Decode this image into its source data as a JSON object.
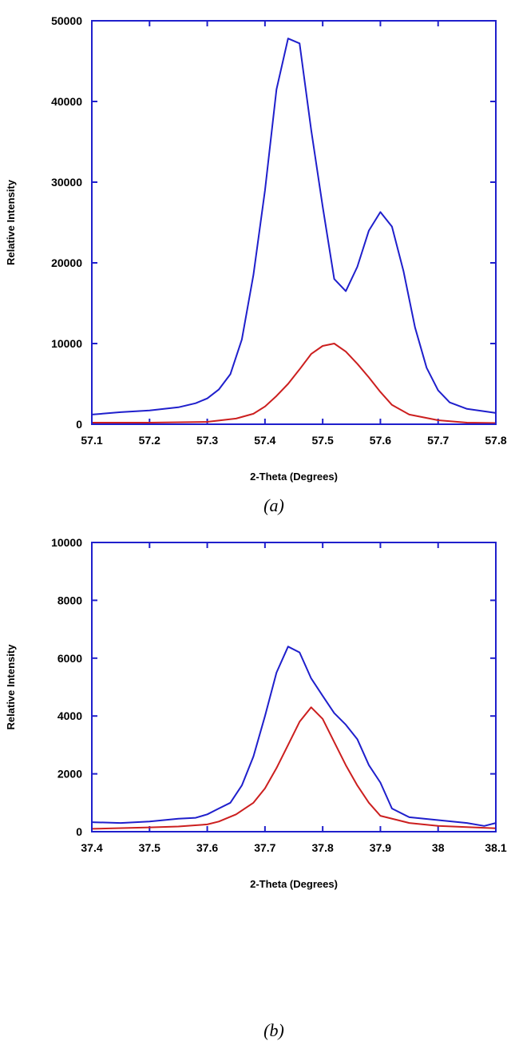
{
  "chart_data": [
    {
      "type": "line",
      "panel": "a",
      "caption": "(a)",
      "title": "",
      "xlabel": "2-Theta (Degrees)",
      "ylabel": "Relative Intensity",
      "xlim": [
        57.1,
        57.8
      ],
      "ylim": [
        0,
        50000
      ],
      "xticks": [
        57.1,
        57.2,
        57.3,
        57.4,
        57.5,
        57.6,
        57.7,
        57.8
      ],
      "xtick_labels": [
        "57.1",
        "57.2",
        "57.3",
        "57.4",
        "57.5",
        "57.6",
        "57.7",
        "57.8"
      ],
      "yticks": [
        0,
        10000,
        20000,
        30000,
        40000,
        50000
      ],
      "ytick_labels": [
        "0",
        "10000",
        "20000",
        "30000",
        "40000",
        "50000"
      ],
      "grid": false,
      "series": [
        {
          "color": "#1f1fcc",
          "points": [
            [
              57.1,
              1200
            ],
            [
              57.15,
              1500
            ],
            [
              57.2,
              1700
            ],
            [
              57.25,
              2100
            ],
            [
              57.28,
              2600
            ],
            [
              57.3,
              3200
            ],
            [
              57.32,
              4300
            ],
            [
              57.34,
              6200
            ],
            [
              57.36,
              10500
            ],
            [
              57.38,
              18500
            ],
            [
              57.4,
              29000
            ],
            [
              57.42,
              41500
            ],
            [
              57.44,
              47800
            ],
            [
              57.46,
              47200
            ],
            [
              57.48,
              36500
            ],
            [
              57.5,
              27000
            ],
            [
              57.52,
              18000
            ],
            [
              57.54,
              16500
            ],
            [
              57.56,
              19500
            ],
            [
              57.58,
              24000
            ],
            [
              57.6,
              26300
            ],
            [
              57.62,
              24500
            ],
            [
              57.64,
              19000
            ],
            [
              57.66,
              12000
            ],
            [
              57.68,
              7000
            ],
            [
              57.7,
              4200
            ],
            [
              57.72,
              2700
            ],
            [
              57.75,
              1900
            ],
            [
              57.8,
              1400
            ]
          ]
        },
        {
          "color": "#cc1f1f",
          "points": [
            [
              57.1,
              200
            ],
            [
              57.2,
              200
            ],
            [
              57.3,
              300
            ],
            [
              57.35,
              700
            ],
            [
              57.38,
              1300
            ],
            [
              57.4,
              2200
            ],
            [
              57.42,
              3500
            ],
            [
              57.44,
              5000
            ],
            [
              57.46,
              6800
            ],
            [
              57.48,
              8700
            ],
            [
              57.5,
              9700
            ],
            [
              57.52,
              10000
            ],
            [
              57.54,
              9000
            ],
            [
              57.56,
              7500
            ],
            [
              57.58,
              5800
            ],
            [
              57.6,
              4000
            ],
            [
              57.62,
              2400
            ],
            [
              57.65,
              1200
            ],
            [
              57.7,
              500
            ],
            [
              57.75,
              200
            ],
            [
              57.8,
              150
            ]
          ]
        }
      ]
    },
    {
      "type": "line",
      "panel": "b",
      "caption": "(b)",
      "title": "",
      "xlabel": "2-Theta (Degrees)",
      "ylabel": "Relative Intensity",
      "xlim": [
        37.4,
        38.1
      ],
      "ylim": [
        0,
        10000
      ],
      "xticks": [
        37.4,
        37.5,
        37.6,
        37.7,
        37.8,
        37.9,
        38.0,
        38.1
      ],
      "xtick_labels": [
        "37.4",
        "37.5",
        "37.6",
        "37.7",
        "37.8",
        "37.9",
        "38",
        "38.1"
      ],
      "yticks": [
        0,
        2000,
        4000,
        6000,
        8000,
        10000
      ],
      "ytick_labels": [
        "0",
        "2000",
        "4000",
        "6000",
        "8000",
        "10000"
      ],
      "grid": false,
      "series": [
        {
          "color": "#1f1fcc",
          "points": [
            [
              37.4,
              330
            ],
            [
              37.45,
              300
            ],
            [
              37.5,
              350
            ],
            [
              37.55,
              450
            ],
            [
              37.58,
              480
            ],
            [
              37.6,
              600
            ],
            [
              37.62,
              800
            ],
            [
              37.64,
              1000
            ],
            [
              37.66,
              1600
            ],
            [
              37.68,
              2600
            ],
            [
              37.7,
              4000
            ],
            [
              37.72,
              5500
            ],
            [
              37.74,
              6400
            ],
            [
              37.76,
              6200
            ],
            [
              37.78,
              5300
            ],
            [
              37.8,
              4700
            ],
            [
              37.82,
              4100
            ],
            [
              37.84,
              3700
            ],
            [
              37.86,
              3200
            ],
            [
              37.88,
              2300
            ],
            [
              37.9,
              1700
            ],
            [
              37.92,
              800
            ],
            [
              37.95,
              500
            ],
            [
              38.0,
              400
            ],
            [
              38.05,
              300
            ],
            [
              38.08,
              200
            ],
            [
              38.1,
              300
            ]
          ]
        },
        {
          "color": "#cc1f1f",
          "points": [
            [
              37.4,
              100
            ],
            [
              37.5,
              150
            ],
            [
              37.55,
              180
            ],
            [
              37.6,
              250
            ],
            [
              37.62,
              350
            ],
            [
              37.65,
              600
            ],
            [
              37.68,
              1000
            ],
            [
              37.7,
              1500
            ],
            [
              37.72,
              2200
            ],
            [
              37.74,
              3000
            ],
            [
              37.76,
              3800
            ],
            [
              37.78,
              4300
            ],
            [
              37.8,
              3900
            ],
            [
              37.82,
              3100
            ],
            [
              37.84,
              2300
            ],
            [
              37.86,
              1600
            ],
            [
              37.88,
              1000
            ],
            [
              37.9,
              550
            ],
            [
              37.95,
              300
            ],
            [
              38.0,
              200
            ],
            [
              38.1,
              120
            ]
          ]
        }
      ]
    }
  ]
}
